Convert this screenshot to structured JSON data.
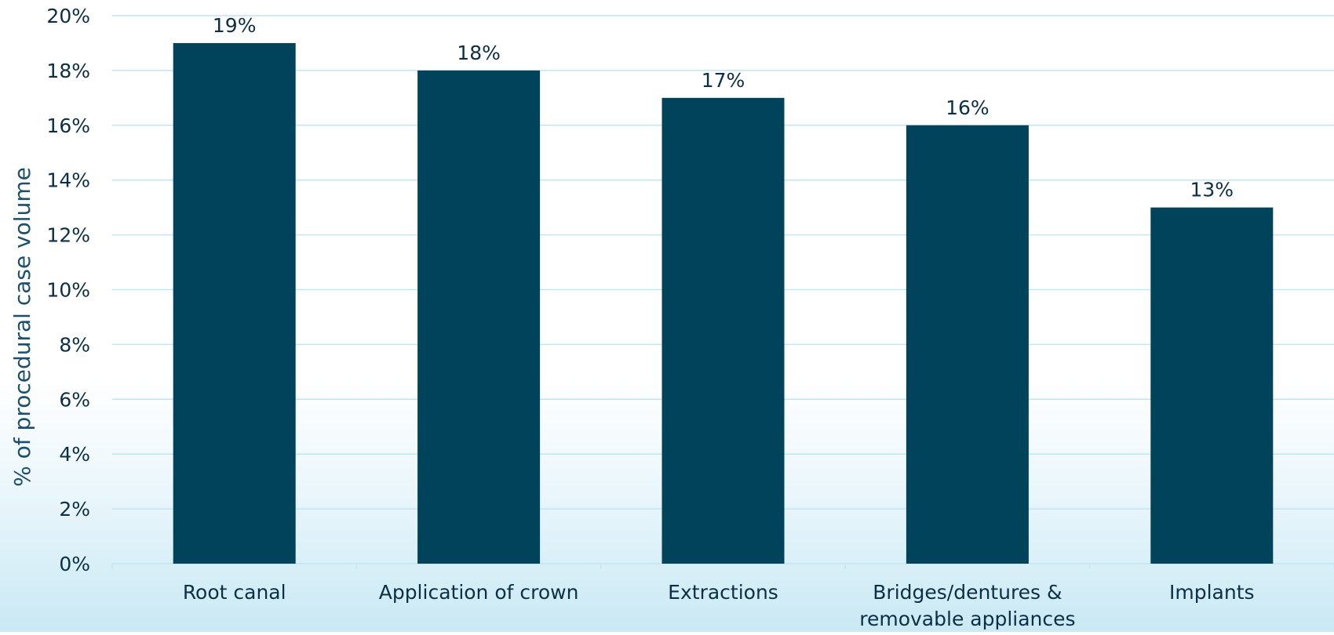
{
  "chart_data": {
    "type": "bar",
    "categories": [
      [
        "Root canal"
      ],
      [
        "Application of crown"
      ],
      [
        "Extractions"
      ],
      [
        "Bridges/dentures &",
        "removable appliances"
      ],
      [
        "Implants"
      ]
    ],
    "values": [
      19,
      18,
      17,
      16,
      13
    ],
    "value_labels": [
      "19%",
      "18%",
      "17%",
      "16%",
      "13%"
    ],
    "ylabel": "% of procedural case volume",
    "ylim": [
      0,
      20
    ],
    "yticks": [
      0,
      2,
      4,
      6,
      8,
      10,
      12,
      14,
      16,
      18,
      20
    ],
    "ytick_labels": [
      "0%",
      "2%",
      "4%",
      "6%",
      "8%",
      "10%",
      "12%",
      "14%",
      "16%",
      "18%",
      "20%"
    ],
    "grid": true,
    "colors": {
      "bar": "#02435C",
      "gridline": "#BFE6F3",
      "text": "#0B2F45",
      "ylabel_text": "#1B4F6B"
    }
  }
}
